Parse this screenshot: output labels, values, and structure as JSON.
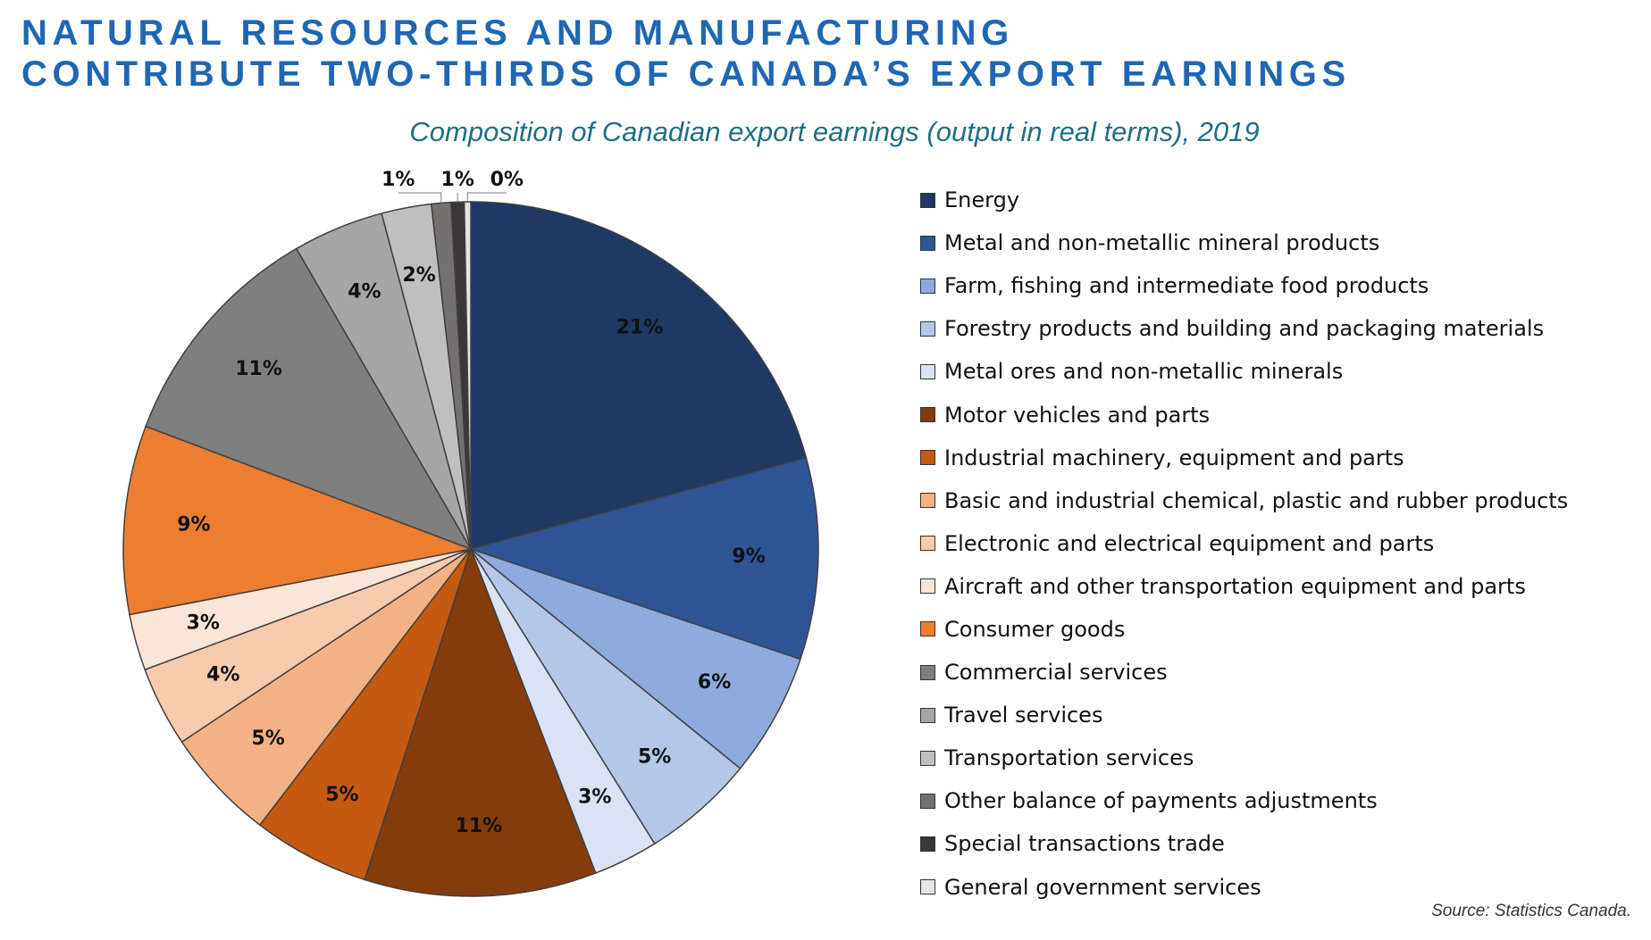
{
  "title_lines": [
    "NATURAL RESOURCES AND MANUFACTURING",
    "CONTRIBUTE TWO-THIRDS OF CANADA’S EXPORT EARNINGS"
  ],
  "subtitle": "Composition of Canadian export earnings (output in real terms), 2019",
  "source": "Source: Statistics Canada.",
  "chart_data": {
    "type": "pie",
    "title": "Composition of Canadian export earnings (output in real terms), 2019",
    "categories": [
      "Energy",
      "Metal and non-metallic mineral products",
      "Farm, fishing and intermediate food products",
      "Forestry products and building and packaging materials",
      "Metal ores and non-metallic minerals",
      "Motor vehicles and parts",
      "Industrial machinery, equipment and parts",
      "Basic and industrial chemical, plastic and rubber products",
      "Electronic and electrical equipment and parts",
      "Aircraft and other transportation equipment and parts",
      "Consumer goods",
      "Commercial services",
      "Travel services",
      "Transportation services",
      "Other balance of payments adjustments",
      "Special transactions trade",
      "General government services"
    ],
    "values": [
      20.6,
      9.3,
      5.7,
      5.2,
      3.0,
      10.7,
      5.4,
      5.2,
      3.7,
      2.6,
      8.7,
      10.8,
      4.2,
      2.3,
      0.9,
      0.6,
      0.3
    ],
    "labels": [
      "21%",
      "9%",
      "6%",
      "5%",
      "3%",
      "11%",
      "5%",
      "5%",
      "4%",
      "3%",
      "9%",
      "11%",
      "4%",
      "2%",
      "1%",
      "1%",
      "0%"
    ],
    "colors": [
      "#203864",
      "#2f5597",
      "#8faadc",
      "#b4c7e7",
      "#dae3f3",
      "#843c0c",
      "#c55a11",
      "#f4b183",
      "#f8cbad",
      "#fbe5d6",
      "#ed7d31",
      "#7f7f7f",
      "#a6a6a6",
      "#bfbfbf",
      "#767171",
      "#3a3838",
      "#e7e6e6"
    ],
    "legend_position": "right",
    "unit": "%"
  }
}
